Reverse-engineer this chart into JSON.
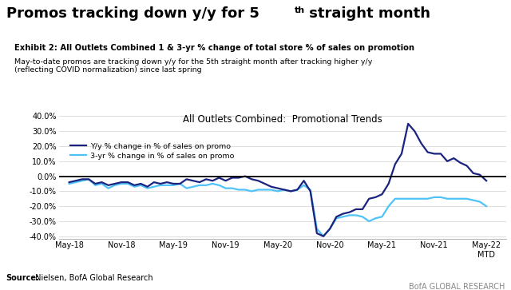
{
  "exhibit_bold": "Exhibit 2: All Outlets Combined 1 & 3-yr % change of total store % of sales on promotion",
  "exhibit_text": "May-to-date promos are tracking down y/y for the 5th straight month after tracking higher y/y\n(reflecting COVID normalization) since last spring",
  "chart_title": "All Outlets Combined:  Promotional Trends",
  "legend1": "Y/y % change in % of sales on promo",
  "legend2": "3-yr % change in % of sales on promo",
  "source_bold": "Source:",
  "source_text": " Nielsen, BofA Global Research",
  "brand": "BofA GLOBAL RESEARCH",
  "ylim": [
    -0.42,
    0.44
  ],
  "yticks": [
    -0.4,
    -0.3,
    -0.2,
    -0.1,
    0.0,
    0.1,
    0.2,
    0.3,
    0.4
  ],
  "bg_color": "#ffffff",
  "line1_color": "#1a237e",
  "line2_color": "#4fc3f7",
  "blue_bar_color": "#1565c0",
  "title_color": "#000000",
  "x_labels": [
    "May-18",
    "Nov-18",
    "May-19",
    "Nov-19",
    "May-20",
    "Nov-20",
    "May-21",
    "Nov-21",
    "May-22\nMTD"
  ],
  "xtick_positions": [
    0,
    4,
    8,
    12,
    16,
    20,
    24,
    28,
    32
  ],
  "series1_x": [
    0,
    0.5,
    1,
    1.5,
    2,
    2.5,
    3,
    3.5,
    4,
    4.5,
    5,
    5.5,
    6,
    6.5,
    7,
    7.5,
    8,
    8.5,
    9,
    9.5,
    10,
    10.5,
    11,
    11.5,
    12,
    12.5,
    13,
    13.5,
    14,
    14.5,
    15,
    15.5,
    16,
    16.5,
    17,
    17.5,
    18,
    18.5,
    19,
    19.5,
    20,
    20.5,
    21,
    21.5,
    22,
    22.5,
    23,
    23.5,
    24,
    24.5,
    25,
    25.5,
    26,
    26.5,
    27,
    27.5,
    28,
    28.5,
    29,
    29.5,
    30,
    30.5,
    31,
    31.5,
    32
  ],
  "series1_y": [
    -0.04,
    -0.03,
    -0.02,
    -0.02,
    -0.05,
    -0.04,
    -0.06,
    -0.05,
    -0.04,
    -0.04,
    -0.06,
    -0.05,
    -0.07,
    -0.04,
    -0.05,
    -0.04,
    -0.05,
    -0.05,
    -0.02,
    -0.03,
    -0.04,
    -0.02,
    -0.03,
    -0.01,
    -0.03,
    -0.01,
    -0.01,
    0.0,
    -0.02,
    -0.03,
    -0.05,
    -0.07,
    -0.08,
    -0.09,
    -0.1,
    -0.09,
    -0.03,
    -0.1,
    -0.38,
    -0.4,
    -0.35,
    -0.27,
    -0.25,
    -0.24,
    -0.22,
    -0.22,
    -0.15,
    -0.14,
    -0.12,
    -0.05,
    0.08,
    0.15,
    0.35,
    0.3,
    0.22,
    0.16,
    0.15,
    0.15,
    0.1,
    0.12,
    0.09,
    0.07,
    0.02,
    0.01,
    -0.03
  ],
  "series2_x": [
    0,
    0.5,
    1,
    1.5,
    2,
    2.5,
    3,
    3.5,
    4,
    4.5,
    5,
    5.5,
    6,
    6.5,
    7,
    7.5,
    8,
    8.5,
    9,
    9.5,
    10,
    10.5,
    11,
    11.5,
    12,
    12.5,
    13,
    13.5,
    14,
    14.5,
    15,
    15.5,
    16,
    16.5,
    17,
    17.5,
    18,
    18.5,
    19,
    19.5,
    20,
    20.5,
    21,
    21.5,
    22,
    22.5,
    23,
    23.5,
    24,
    24.5,
    25,
    25.5,
    26,
    26.5,
    27,
    27.5,
    28,
    28.5,
    29,
    29.5,
    30,
    30.5,
    31,
    31.5,
    32
  ],
  "series2_y": [
    -0.05,
    -0.04,
    -0.03,
    -0.02,
    -0.06,
    -0.05,
    -0.08,
    -0.06,
    -0.05,
    -0.05,
    -0.07,
    -0.06,
    -0.08,
    -0.07,
    -0.06,
    -0.06,
    -0.06,
    -0.05,
    -0.08,
    -0.07,
    -0.06,
    -0.06,
    -0.05,
    -0.06,
    -0.08,
    -0.08,
    -0.09,
    -0.09,
    -0.1,
    -0.09,
    -0.09,
    -0.09,
    -0.1,
    -0.09,
    -0.1,
    -0.09,
    -0.06,
    -0.09,
    -0.35,
    -0.4,
    -0.35,
    -0.28,
    -0.27,
    -0.26,
    -0.26,
    -0.27,
    -0.3,
    -0.28,
    -0.27,
    -0.2,
    -0.15,
    -0.15,
    -0.15,
    -0.15,
    -0.15,
    -0.15,
    -0.14,
    -0.14,
    -0.15,
    -0.15,
    -0.15,
    -0.15,
    -0.16,
    -0.17,
    -0.2
  ]
}
